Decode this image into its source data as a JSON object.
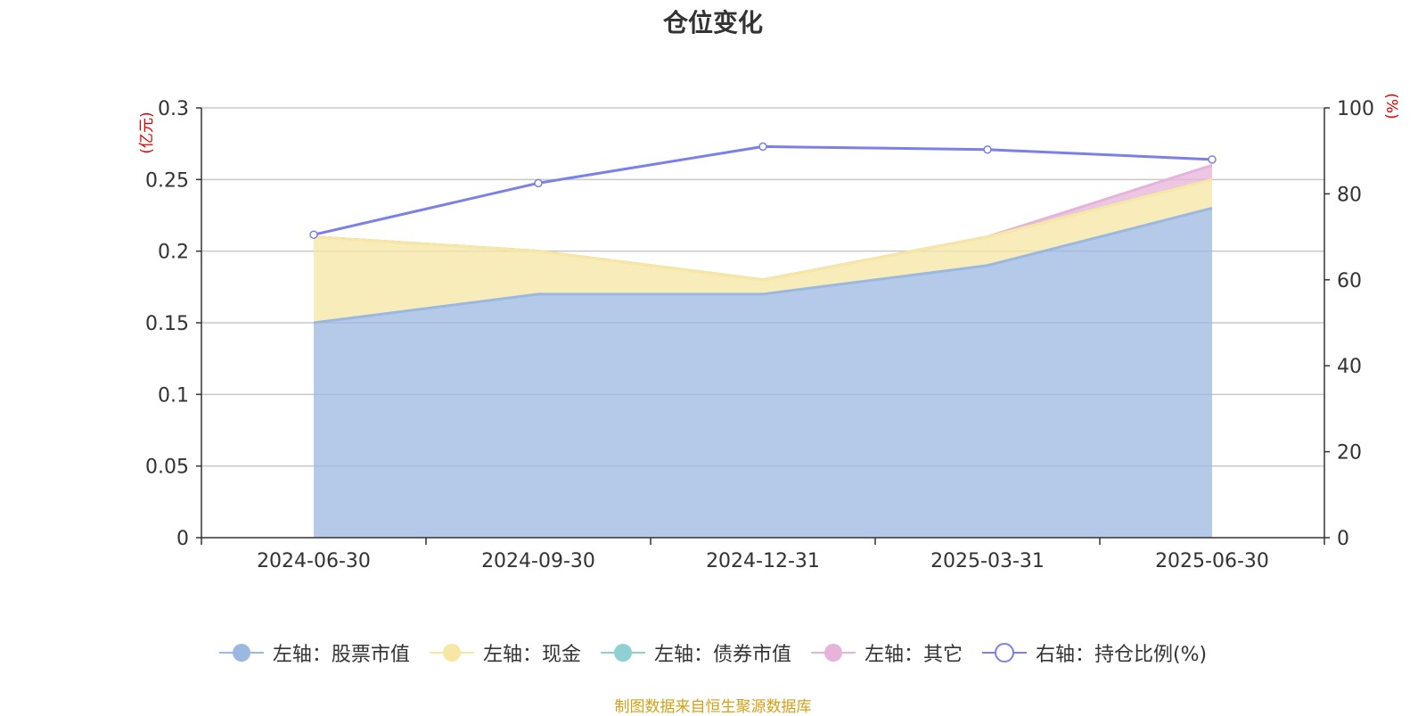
{
  "chart_data": {
    "type": "area",
    "title": "仓位变化",
    "categories": [
      "2024-06-30",
      "2024-09-30",
      "2024-12-31",
      "2025-03-31",
      "2025-06-30"
    ],
    "left_axis": {
      "unit_label": "(亿元)",
      "ylim": [
        0,
        0.3
      ],
      "ticks": [
        "0",
        "0.05",
        "0.1",
        "0.15",
        "0.2",
        "0.25",
        "0.3"
      ]
    },
    "right_axis": {
      "unit_label": "(%)",
      "ylim": [
        0,
        100
      ],
      "ticks": [
        "0",
        "20",
        "40",
        "60",
        "80",
        "100"
      ]
    },
    "series": [
      {
        "name": "左轴：股票市值",
        "axis": "left",
        "stacked": true,
        "color": "#9bb8e0",
        "values": [
          0.15,
          0.17,
          0.17,
          0.19,
          0.23
        ]
      },
      {
        "name": "左轴：现金",
        "axis": "left",
        "stacked": true,
        "color": "#f7e6a4",
        "values": [
          0.06,
          0.03,
          0.01,
          0.02,
          0.02
        ]
      },
      {
        "name": "左轴：债券市值",
        "axis": "left",
        "stacked": true,
        "color": "#8fd0d2",
        "values": [
          0,
          0,
          0,
          0,
          0
        ]
      },
      {
        "name": "左轴：其它",
        "axis": "left",
        "stacked": true,
        "color": "#e6b3da",
        "values": [
          0.0,
          0.0,
          0.0,
          0.0,
          0.01
        ]
      },
      {
        "name": "右轴：持仓比例(%)",
        "axis": "right",
        "type": "line",
        "color": "#7b7fe8",
        "values": [
          70.5,
          82.5,
          91,
          90.3,
          88
        ]
      }
    ],
    "grid": true,
    "legend_position": "bottom"
  },
  "source_note": "制图数据来自恒生聚源数据库"
}
